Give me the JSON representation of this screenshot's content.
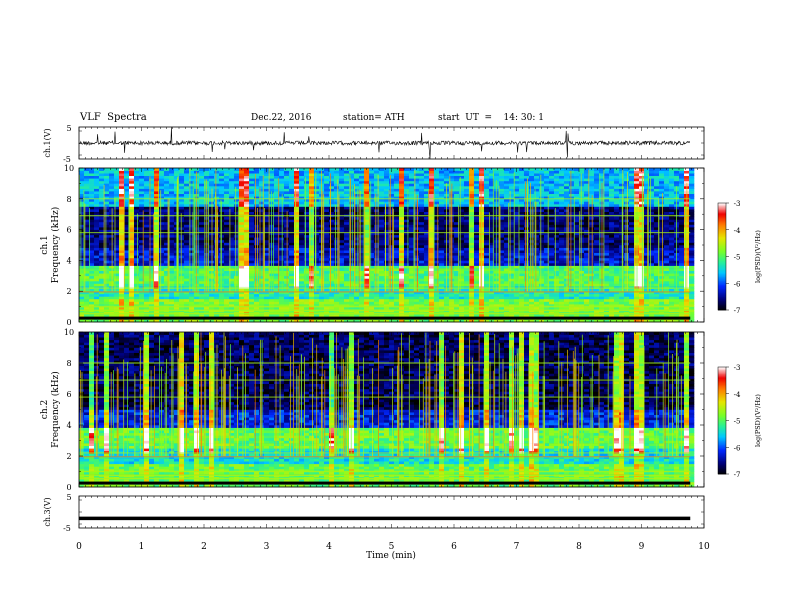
{
  "header": {
    "title": "VLF  Spectra",
    "date": "Dec.22, 2016",
    "station": "station= ATH",
    "start": "start  UT  =    14: 30: 1"
  },
  "chart_data": [
    {
      "type": "line",
      "name": "ch1-waveform",
      "ylabel": "ch.1(V)",
      "yticks": [
        "5",
        "-5"
      ],
      "ylim": [
        -5,
        5
      ],
      "x_range_min": [
        0,
        9.78
      ],
      "baseline_v": 0
    },
    {
      "type": "heatmap",
      "name": "ch1-spectrogram",
      "ylabel": "ch.1\nFrequency (kHz)",
      "ylabel_line1": "ch.1",
      "ylabel_line2": "Frequency  (kHz)",
      "yticks": [
        0,
        2,
        4,
        6,
        8,
        10
      ],
      "ylim": [
        0,
        10
      ],
      "x_range_min": [
        0,
        9.78
      ],
      "colorbar": {
        "label": "log(PSD)(V²/Hz)",
        "ticks": [
          "-3",
          "-4",
          "-5",
          "-6",
          "-7"
        ],
        "range": [
          -7,
          -3
        ]
      },
      "bands_khz": [
        {
          "from": 0,
          "to": 1.5,
          "level": -4.8
        },
        {
          "from": 1.5,
          "to": 2.2,
          "level": -5.3
        },
        {
          "from": 2.2,
          "to": 3.6,
          "level": -5.0
        },
        {
          "from": 3.6,
          "to": 4.8,
          "level": -6.3
        },
        {
          "from": 4.8,
          "to": 7.5,
          "level": -6.6
        },
        {
          "from": 7.5,
          "to": 10,
          "level": -5.6
        }
      ]
    },
    {
      "type": "heatmap",
      "name": "ch2-spectrogram",
      "ylabel_line1": "ch.2",
      "ylabel_line2": "Frequency  (kHz)",
      "yticks": [
        0,
        2,
        4,
        6,
        8,
        10
      ],
      "ylim": [
        0,
        10
      ],
      "x_range_min": [
        0,
        9.78
      ],
      "colorbar": {
        "label": "log(PSD)(V²/Hz)",
        "ticks": [
          "-3",
          "-4",
          "-5",
          "-6",
          "-7"
        ],
        "range": [
          -7,
          -3
        ]
      },
      "bands_khz": [
        {
          "from": 0,
          "to": 1.5,
          "level": -4.9
        },
        {
          "from": 1.5,
          "to": 2.4,
          "level": -5.4
        },
        {
          "from": 2.4,
          "to": 3.8,
          "level": -4.9
        },
        {
          "from": 3.8,
          "to": 5.0,
          "level": -6.2
        },
        {
          "from": 5.0,
          "to": 10,
          "level": -6.7
        }
      ]
    },
    {
      "type": "line",
      "name": "ch3-waveform",
      "ylabel": "ch.3(V)",
      "yticks": [
        "5",
        "-5"
      ],
      "ylim": [
        -5,
        5
      ],
      "x_range_min": [
        0,
        9.78
      ],
      "level_v": -2
    }
  ],
  "xaxis": {
    "label": "Time  (min)",
    "ticks": [
      "0",
      "1",
      "2",
      "3",
      "4",
      "5",
      "6",
      "7",
      "8",
      "9",
      "10"
    ],
    "range": [
      0,
      10
    ]
  }
}
